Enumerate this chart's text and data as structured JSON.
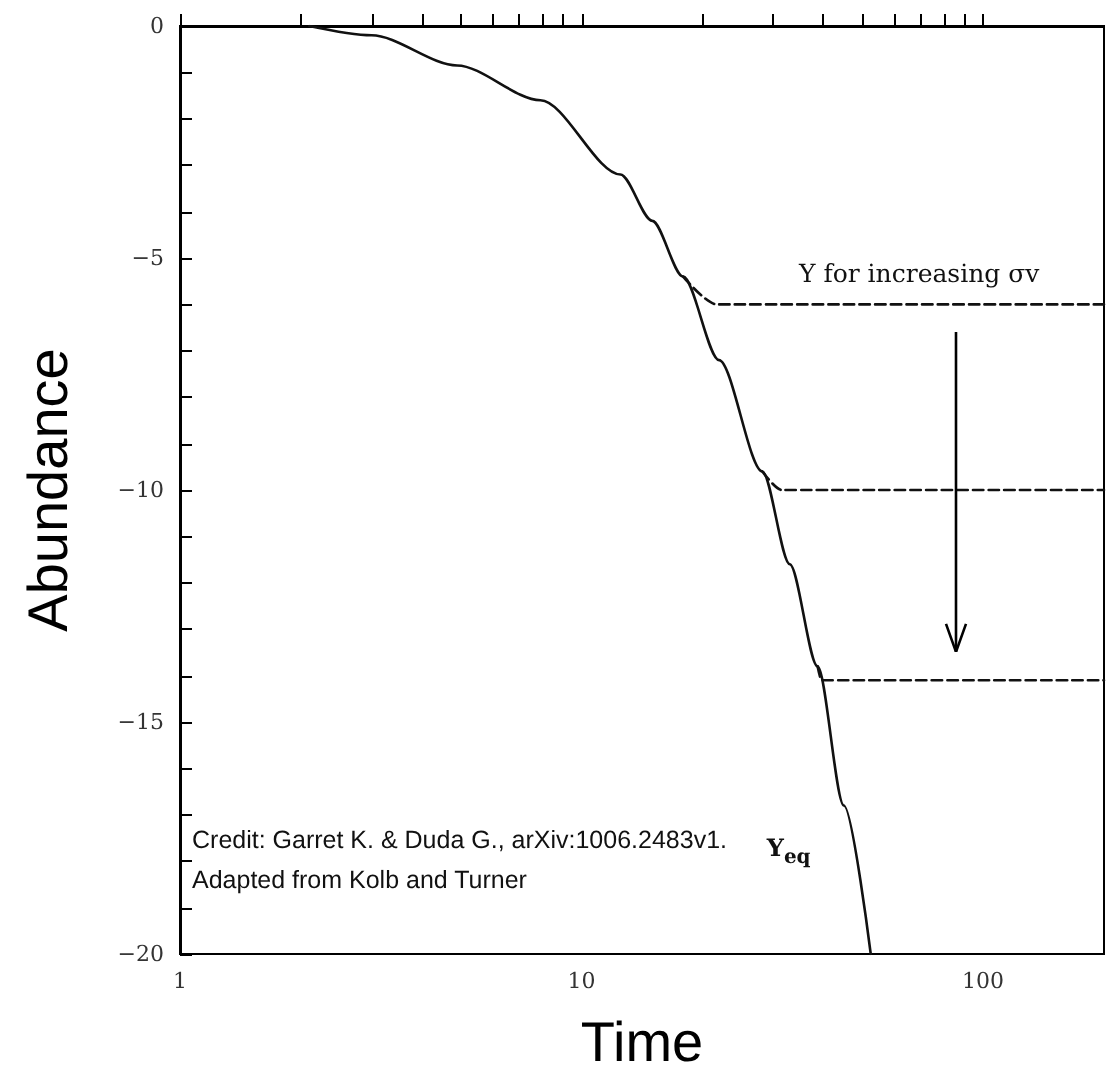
{
  "chart_data": {
    "type": "line",
    "xlabel": "Time",
    "ylabel": "Abundance",
    "log": "x",
    "xlim": [
      1,
      200
    ],
    "ylim": [
      -20,
      0
    ],
    "xticks": [
      1,
      {
        "value": 2,
        "label": null
      },
      {
        "value": 3,
        "label": null
      },
      {
        "value": 4,
        "label": null
      },
      {
        "value": 5,
        "label": null
      },
      {
        "value": 6,
        "label": null
      },
      {
        "value": 7,
        "label": null
      },
      {
        "value": 8,
        "label": null
      },
      {
        "value": 9,
        "label": null
      },
      10,
      {
        "value": 20,
        "label": null
      },
      {
        "value": 30,
        "label": null
      },
      {
        "value": 40,
        "label": null
      },
      {
        "value": 50,
        "label": null
      },
      {
        "value": 60,
        "label": null
      },
      {
        "value": 70,
        "label": null
      },
      {
        "value": 80,
        "label": null
      },
      {
        "value": 90,
        "label": null
      },
      100
    ],
    "yticks": [
      -20,
      {
        "value": -19,
        "label": null
      },
      {
        "value": -18,
        "label": null
      },
      {
        "value": -17,
        "label": null
      },
      {
        "value": -16,
        "label": null
      },
      {
        "value": -15,
        "label": "−15"
      },
      {
        "value": -14,
        "label": null
      },
      {
        "value": -13,
        "label": null
      },
      {
        "value": -12,
        "label": null
      },
      {
        "value": -11,
        "label": null
      },
      {
        "value": -10,
        "label": "−10"
      },
      {
        "value": -9,
        "label": null
      },
      {
        "value": -8,
        "label": null
      },
      {
        "value": -7,
        "label": null
      },
      {
        "value": -6,
        "label": null
      },
      {
        "value": -5,
        "label": "−5"
      },
      {
        "value": -4,
        "label": null
      },
      {
        "value": -3,
        "label": null
      },
      {
        "value": -2,
        "label": null
      },
      {
        "value": -1,
        "label": null
      },
      0
    ],
    "series": [
      {
        "name": "Y$_{eq}$",
        "color": "#111111",
        "line_style": "solid",
        "x": [
          2.1,
          3.0,
          4.9,
          7.9,
          12.5,
          15,
          17.9,
          22,
          28.2,
          33,
          38.7,
          45,
          52.5
        ],
        "values": [
          0,
          -0.2,
          -0.85,
          -1.6,
          -3.2,
          -4.2,
          -5.4,
          -7.2,
          -9.6,
          -11.6,
          -13.8,
          -16.8,
          -20
        ]
      },
      {
        "color": "#111111",
        "line_style": "dashed",
        "x": [
          17.9,
          21.7,
          200
        ],
        "values": [
          -5.4,
          -6.0,
          -6.0
        ]
      },
      {
        "color": "#111111",
        "line_style": "dashed",
        "x": [
          28.2,
          31.5,
          200
        ],
        "values": [
          -9.6,
          -10.0,
          -10.0
        ]
      },
      {
        "color": "#111111",
        "line_style": "dashed",
        "x": [
          38.7,
          39.6,
          200
        ],
        "values": [
          -13.8,
          -14.1,
          -14.1
        ]
      }
    ],
    "annotations": [
      "Y for increasing σv",
      "Credit: Garret K. & Duda G., arXiv:1006.2483v1.",
      "Adapted from Kolb and Turner"
    ]
  }
}
